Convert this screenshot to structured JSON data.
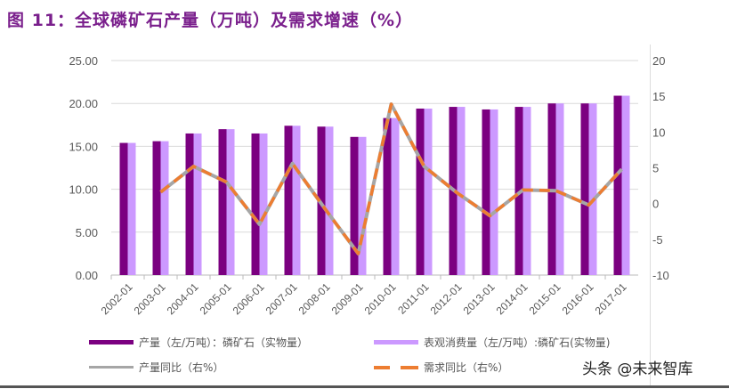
{
  "title": "图 11：全球磷矿石产量（万吨）及需求增速（%）",
  "watermark": "头条 @未来智库",
  "chart_data": {
    "type": "bar+line",
    "categories": [
      "2002-01",
      "2003-01",
      "2004-01",
      "2005-01",
      "2006-01",
      "2007-01",
      "2008-01",
      "2009-01",
      "2010-01",
      "2011-01",
      "2012-01",
      "2013-01",
      "2014-01",
      "2015-01",
      "2016-01",
      "2017-01"
    ],
    "left_axis": {
      "ylim": [
        0,
        25
      ],
      "ticks": [
        "0.00",
        "5.00",
        "10.00",
        "15.00",
        "20.00",
        "25.00"
      ]
    },
    "right_axis": {
      "ylim": [
        -10,
        20
      ],
      "ticks": [
        "-10",
        "-5",
        "0",
        "5",
        "10",
        "15",
        "20"
      ]
    },
    "grid": true,
    "legend_position": "bottom",
    "series": [
      {
        "name": "产量（左/万吨）：磷矿石（实物量）",
        "type": "bar",
        "axis": "left",
        "color": "#7b0080",
        "values": [
          15.4,
          15.6,
          16.5,
          17.0,
          16.5,
          17.4,
          17.3,
          16.1,
          18.3,
          19.4,
          19.6,
          19.3,
          19.6,
          20.0,
          20.0,
          20.9
        ]
      },
      {
        "name": "表观消费量（左/万吨）:磷矿石(实物量)",
        "type": "bar",
        "axis": "left",
        "color": "#cc99ff",
        "values": [
          15.4,
          15.6,
          16.5,
          17.0,
          16.5,
          17.4,
          17.3,
          16.1,
          18.3,
          19.4,
          19.6,
          19.3,
          19.6,
          20.0,
          20.0,
          20.9
        ]
      },
      {
        "name": "产量同比（右%）",
        "type": "line",
        "axis": "right",
        "color": "#a6a6a6",
        "values": [
          null,
          1.6,
          5.2,
          3.0,
          -2.9,
          5.6,
          -0.8,
          -7.0,
          13.9,
          5.2,
          1.5,
          -1.7,
          1.9,
          1.8,
          -0.2,
          4.8
        ]
      },
      {
        "name": "需求同比（右%）",
        "type": "line",
        "dashed": true,
        "axis": "right",
        "color": "#ed7d31",
        "values": [
          null,
          1.6,
          5.2,
          3.0,
          -2.9,
          5.6,
          -0.8,
          -7.0,
          13.9,
          5.2,
          1.5,
          -1.7,
          1.9,
          1.8,
          -0.2,
          4.8
        ]
      }
    ]
  }
}
